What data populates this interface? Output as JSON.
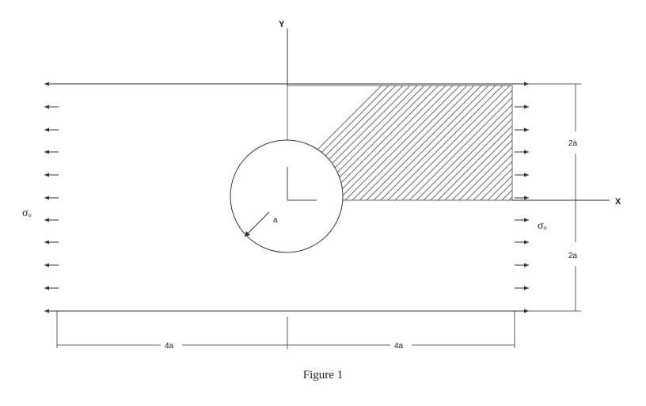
{
  "diagram": {
    "axis_y_label": "Y",
    "axis_x_label": "X",
    "stress_left_label": "σₒ",
    "stress_right_label": "σₒ",
    "radius_label": "a",
    "dim_upper_height": "2a",
    "dim_lower_height": "2a",
    "dim_left_width": "4a",
    "dim_right_width": "4a",
    "caption": "Figure 1"
  },
  "colors": {
    "line": "#333333",
    "hatch": "#555555",
    "background": "#ffffff"
  }
}
